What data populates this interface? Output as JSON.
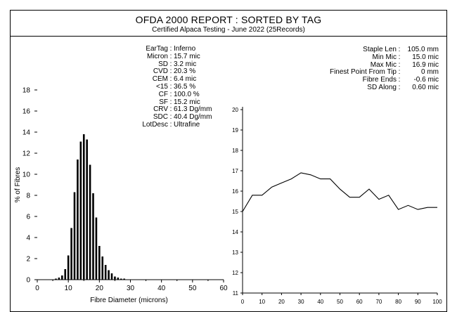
{
  "header": {
    "title": "OFDA 2000 REPORT : SORTED BY TAG",
    "subtitle": "Certified Alpaca Testing - June 2022 (25Records)"
  },
  "stats_left": [
    {
      "label": "EarTag",
      "value": "Inferno"
    },
    {
      "label": "Micron",
      "value": "15.7 mic"
    },
    {
      "label": "SD",
      "value": "3.2 mic"
    },
    {
      "label": "CVD",
      "value": "20.3 %"
    },
    {
      "label": "CEM",
      "value": "6.4 mic"
    },
    {
      "label": "<15",
      "value": "36.5 %"
    },
    {
      "label": "CF",
      "value": "100.0 %"
    },
    {
      "label": "SF",
      "value": "15.2 mic"
    },
    {
      "label": "CRV",
      "value": "61.3 Dg/mm"
    },
    {
      "label": "SDC",
      "value": "40.4 Dg/mm"
    },
    {
      "label": "LotDesc",
      "value": "Ultrafine"
    }
  ],
  "stats_right": [
    {
      "label": "Staple Len",
      "value": "105.0 mm"
    },
    {
      "label": "Min Mic",
      "value": "15.0 mic"
    },
    {
      "label": "Max Mic",
      "value": "16.9 mic"
    },
    {
      "label": "Finest Point From Tip",
      "value": "0 mm"
    },
    {
      "label": "Fibre Ends",
      "value": "-0.6 mic"
    },
    {
      "label": "SD Along",
      "value": "0.60 mic"
    }
  ],
  "chart_data": [
    {
      "type": "bar",
      "xlabel": "Fibre Diameter (microns)",
      "ylabel": "% of Fibres",
      "xlim": [
        0,
        60
      ],
      "ylim": [
        0,
        18
      ],
      "xticks": [
        0,
        10,
        20,
        30,
        40,
        50,
        60
      ],
      "yticks": [
        0,
        2,
        4,
        6,
        8,
        10,
        12,
        14,
        16,
        18
      ],
      "x": [
        6,
        7,
        8,
        9,
        10,
        11,
        12,
        13,
        14,
        15,
        16,
        17,
        18,
        19,
        20,
        21,
        22,
        23,
        24,
        25,
        26,
        27,
        28
      ],
      "values": [
        0.1,
        0.2,
        0.4,
        1.0,
        2.3,
        4.9,
        8.3,
        11.4,
        13.1,
        13.8,
        13.3,
        10.9,
        8.2,
        5.9,
        3.2,
        2.2,
        1.4,
        0.9,
        0.6,
        0.3,
        0.2,
        0.1,
        0.1
      ],
      "grid": false
    },
    {
      "type": "line",
      "xlabel": "",
      "ylabel": "",
      "xlim": [
        0,
        100
      ],
      "ylim": [
        11,
        20
      ],
      "xticks": [
        0,
        10,
        20,
        30,
        40,
        50,
        60,
        70,
        80,
        90,
        100
      ],
      "yticks": [
        11,
        12,
        13,
        14,
        15,
        16,
        17,
        18,
        19,
        20
      ],
      "x": [
        0,
        5,
        10,
        15,
        20,
        25,
        30,
        35,
        40,
        45,
        50,
        55,
        60,
        65,
        70,
        75,
        80,
        85,
        90,
        95,
        100
      ],
      "values": [
        15.0,
        15.8,
        15.8,
        16.2,
        16.4,
        16.6,
        16.9,
        16.8,
        16.6,
        16.6,
        16.1,
        15.7,
        15.7,
        16.1,
        15.6,
        15.8,
        15.1,
        15.3,
        15.1,
        15.2,
        15.2
      ],
      "grid": false
    }
  ]
}
